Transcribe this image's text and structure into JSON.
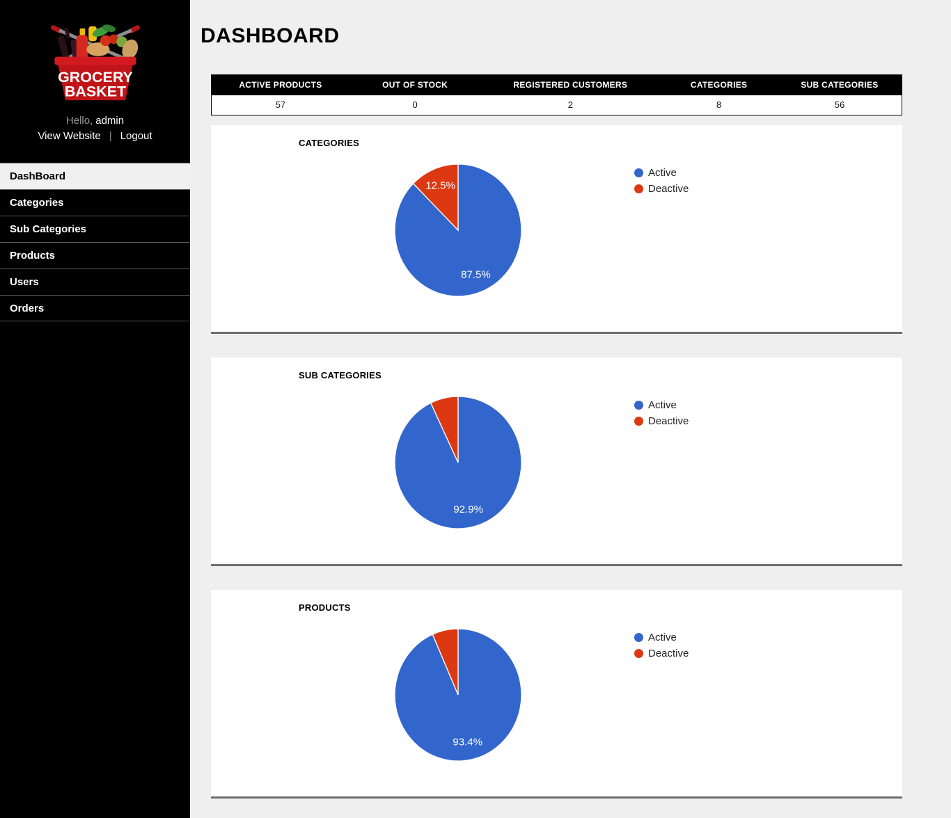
{
  "page": {
    "title": "DASHBOARD"
  },
  "sidebar": {
    "logo": {
      "icon": "grocery-basket-logo",
      "line1": "GROCERY",
      "line2": "BASKET"
    },
    "greeting": {
      "prefix": "Hello,",
      "username": "admin"
    },
    "links": {
      "view_website": "View Website",
      "divider": "|",
      "logout": "Logout"
    },
    "menu": [
      {
        "label": "DashBoard",
        "active": true
      },
      {
        "label": "Categories",
        "active": false
      },
      {
        "label": "Sub Categories",
        "active": false
      },
      {
        "label": "Products",
        "active": false
      },
      {
        "label": "Users",
        "active": false
      },
      {
        "label": "Orders",
        "active": false
      }
    ]
  },
  "stats": {
    "columns": [
      "ACTIVE PRODUCTS",
      "OUT OF STOCK",
      "REGISTERED CUSTOMERS",
      "CATEGORIES",
      "SUB CATEGORIES"
    ],
    "values": [
      "57",
      "0",
      "2",
      "8",
      "56"
    ]
  },
  "colors": {
    "active_slice": "#3366CC",
    "deactive_slice": "#DC3912",
    "page_bg": "#EFEFEF",
    "sidebar_bg": "#000000",
    "panel_bg": "#FFFFFF",
    "divider": "#6D6D6D"
  },
  "chart_data": [
    {
      "type": "pie",
      "title": "CATEGORIES",
      "legend_position": "right",
      "legend": [
        "Active",
        "Deactive"
      ],
      "slices": [
        {
          "label": "Active",
          "pct": 87.5,
          "display_label": "87.5%",
          "color": "#3366CC"
        },
        {
          "label": "Deactive",
          "pct": 12.5,
          "display_label": "12.5%",
          "color": "#DC3912"
        }
      ]
    },
    {
      "type": "pie",
      "title": "SUB CATEGORIES",
      "legend_position": "right",
      "legend": [
        "Active",
        "Deactive"
      ],
      "slices": [
        {
          "label": "Active",
          "pct": 92.9,
          "display_label": "92.9%",
          "color": "#3366CC"
        },
        {
          "label": "Deactive",
          "pct": 7.1,
          "color": "#DC3912"
        }
      ]
    },
    {
      "type": "pie",
      "title": "PRODUCTS",
      "legend_position": "right",
      "legend": [
        "Active",
        "Deactive"
      ],
      "slices": [
        {
          "label": "Active",
          "pct": 93.4,
          "display_label": "93.4%",
          "color": "#3366CC"
        },
        {
          "label": "Deactive",
          "pct": 6.6,
          "color": "#DC3912"
        }
      ]
    }
  ]
}
